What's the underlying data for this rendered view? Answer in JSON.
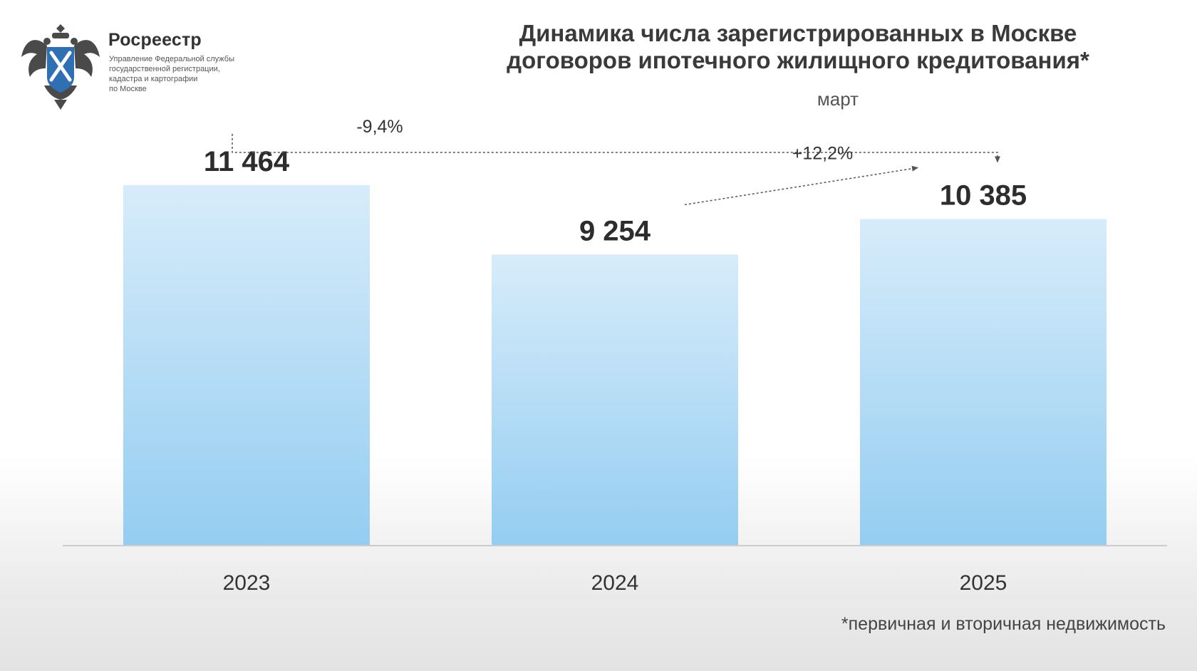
{
  "logo": {
    "name": "Росреестр",
    "sub_lines": [
      "Управление Федеральной службы",
      "государственной регистрации,",
      "кадастра и картографии",
      "по Москве"
    ]
  },
  "header": {
    "title_lines": [
      "Динамика числа зарегистрированных в Москве",
      "договоров ипотечного жилищного кредитования*"
    ],
    "subtitle": "март"
  },
  "footnote": "*первичная и вторичная недвижимость",
  "colors": {
    "bar_top": "#d7ecfa",
    "bar_bottom": "#94cdf1",
    "axis": "#cccccc",
    "connector": "#555555"
  },
  "chart_data": {
    "type": "bar",
    "title": "Динамика числа зарегистрированных в Москве договоров ипотечного жилищного кредитования*",
    "subtitle": "март",
    "categories": [
      "2023",
      "2024",
      "2025"
    ],
    "values": [
      11464,
      9254,
      10385
    ],
    "value_labels": [
      "11 464",
      "9 254",
      "10 385"
    ],
    "ylim": [
      0,
      13000
    ],
    "grid": false,
    "legend": "none",
    "annotations": [
      {
        "from": "2023",
        "to": "2025",
        "label": "-9,4%"
      },
      {
        "from": "2024",
        "to": "2025",
        "label": "+12,2%"
      }
    ]
  }
}
